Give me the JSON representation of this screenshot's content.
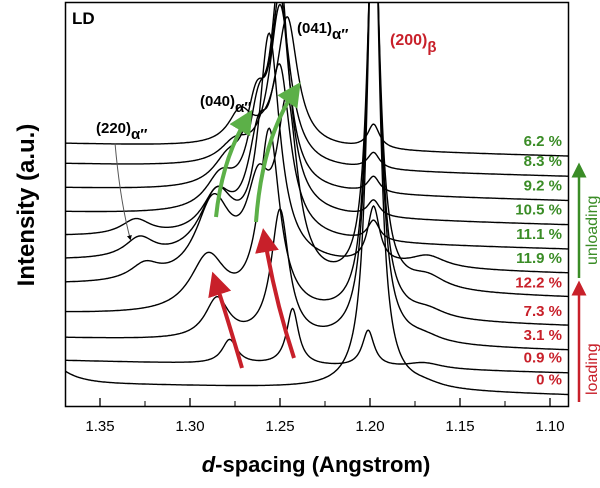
{
  "chart_data": {
    "type": "line",
    "title": "",
    "xlabel_italic": "d",
    "xlabel_rest": "-spacing (Angstrom)",
    "ylabel": "Intensity (a.u.)",
    "xlim": [
      1.37,
      1.09
    ],
    "x_reversed": true,
    "ylim": [
      0,
      100
    ],
    "grid": false,
    "x_ticks": [
      1.35,
      1.3,
      1.25,
      1.2,
      1.15,
      1.1
    ],
    "x_tick_labels": [
      "1.35",
      "1.30",
      "1.25",
      "1.20",
      "1.15",
      "1.10"
    ],
    "panel_label": "LD",
    "annotations": {
      "p041": {
        "hkl": "(041)",
        "phase": "α″",
        "d": 1.247
      },
      "p040": {
        "hkl": "(040)",
        "phase": "α″",
        "d": 1.272
      },
      "p220": {
        "hkl": "(220)",
        "phase": "α″",
        "d": 1.328
      },
      "p200": {
        "hkl": "(200)",
        "phase": "β",
        "d": 1.198
      }
    },
    "loading_label": "loading",
    "unloading_label": "unloading",
    "colors": {
      "loading": "#c8202a",
      "unloading": "#3a8c26",
      "lines": "#000000",
      "arrow_green": "#5cb048"
    },
    "peak_shape": "lorentzian",
    "series": [
      {
        "name": "0 %",
        "stage": "loading",
        "offset": 3,
        "peaks": [
          [
            1.198,
            130,
            0.004
          ],
          [
            1.17,
            1,
            0.012
          ]
        ]
      },
      {
        "name": "0.9 %",
        "stage": "loading",
        "offset": 8.5,
        "peaks": [
          [
            1.278,
            6,
            0.005
          ],
          [
            1.243,
            14,
            0.004
          ],
          [
            1.201,
            9,
            0.004
          ],
          [
            1.17,
            1.5,
            0.012
          ]
        ]
      },
      {
        "name": "3.1 %",
        "stage": "loading",
        "offset": 14,
        "peaks": [
          [
            1.285,
            10,
            0.008
          ],
          [
            1.25,
            32,
            0.006
          ],
          [
            1.198,
            120,
            0.004
          ],
          [
            1.17,
            1.5,
            0.012
          ]
        ]
      },
      {
        "name": "7.3 %",
        "stage": "loading",
        "offset": 20,
        "peaks": [
          [
            1.29,
            14,
            0.012
          ],
          [
            1.256,
            45,
            0.007
          ],
          [
            1.198,
            110,
            0.004
          ],
          [
            1.168,
            2,
            0.012
          ]
        ]
      },
      {
        "name": "12.2 %",
        "stage": "loading",
        "offset": 27,
        "peaks": [
          [
            1.325,
            4,
            0.01
          ],
          [
            1.287,
            20,
            0.012
          ],
          [
            1.262,
            20,
            0.008
          ],
          [
            1.246,
            42,
            0.007
          ],
          [
            1.198,
            100,
            0.004
          ],
          [
            1.168,
            3,
            0.012
          ]
        ]
      },
      {
        "name": "11.9 %",
        "stage": "unloading",
        "offset": 33,
        "peaks": [
          [
            1.328,
            5,
            0.01
          ],
          [
            1.285,
            16,
            0.012
          ],
          [
            1.256,
            55,
            0.007
          ],
          [
            1.198,
            14,
            0.004
          ],
          [
            1.168,
            3,
            0.012
          ]
        ]
      },
      {
        "name": "11.1 %",
        "stage": "unloading",
        "offset": 39,
        "peaks": [
          [
            1.33,
            4,
            0.01
          ],
          [
            1.285,
            10,
            0.01
          ],
          [
            1.262,
            20,
            0.007
          ],
          [
            1.25,
            38,
            0.007
          ],
          [
            1.198,
            5,
            0.004
          ]
        ]
      },
      {
        "name": "10.5 %",
        "stage": "unloading",
        "offset": 45,
        "peaks": [
          [
            1.283,
            8,
            0.01
          ],
          [
            1.262,
            20,
            0.007
          ],
          [
            1.25,
            55,
            0.006
          ],
          [
            1.198,
            4,
            0.004
          ]
        ]
      },
      {
        "name": "9.2 %",
        "stage": "unloading",
        "offset": 51,
        "peaks": [
          [
            1.279,
            6,
            0.01
          ],
          [
            1.263,
            18,
            0.007
          ],
          [
            1.25,
            45,
            0.006
          ],
          [
            1.198,
            4,
            0.004
          ]
        ]
      },
      {
        "name": "8.3 %",
        "stage": "unloading",
        "offset": 57,
        "peaks": [
          [
            1.275,
            5,
            0.01
          ],
          [
            1.25,
            40,
            0.007
          ],
          [
            1.198,
            4,
            0.004
          ]
        ]
      },
      {
        "name": "6.2 %",
        "stage": "unloading",
        "offset": 62,
        "peaks": [
          [
            1.272,
            8,
            0.008
          ],
          [
            1.246,
            32,
            0.007
          ],
          [
            1.198,
            6,
            0.004
          ]
        ]
      }
    ]
  }
}
